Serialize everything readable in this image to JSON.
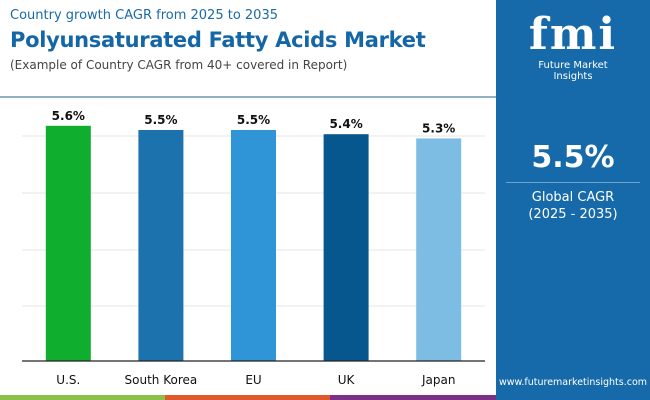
{
  "header": {
    "subtitle": "Country growth CAGR from 2025 to 2035",
    "title": "Polyunsaturated Fatty Acids Market",
    "note": "(Example of Country CAGR from 40+ covered in Report)"
  },
  "brand": {
    "logo_text": "fmi",
    "name": "Future Market Insights",
    "url": "www.futuremarketinsights.com",
    "panel_color": "#176aa9"
  },
  "global": {
    "value": "5.5%",
    "label": "Global CAGR",
    "period": "(2025 - 2035)"
  },
  "chart_data": {
    "type": "bar",
    "categories": [
      "U.S.",
      "South Korea",
      "EU",
      "UK",
      "Japan"
    ],
    "values": [
      5.6,
      5.5,
      5.5,
      5.4,
      5.3
    ],
    "data_labels": [
      "5.6%",
      "5.5%",
      "5.5%",
      "5.4%",
      "5.3%"
    ],
    "colors": [
      "#0fae2f",
      "#1b72ad",
      "#2f95d6",
      "#07578f",
      "#7dbde3"
    ],
    "ylim": [
      0,
      6
    ],
    "grid": true,
    "title": "",
    "xlabel": "",
    "ylabel": ""
  }
}
